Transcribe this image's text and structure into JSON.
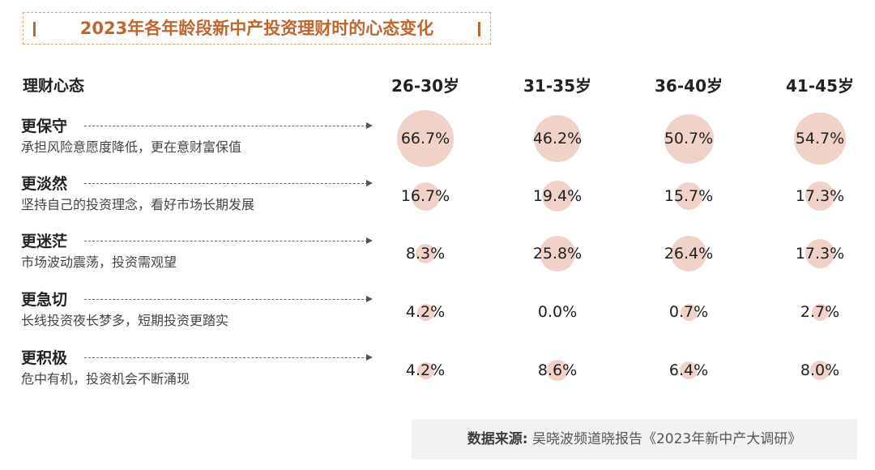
{
  "title": "2023年各年龄段新中产投资理财时的心态变化",
  "header": {
    "first": "理财心态",
    "columns": [
      "26-30岁",
      "31-35岁",
      "36-40岁",
      "41-45岁"
    ]
  },
  "rows": [
    {
      "name": "更保守",
      "desc": "承担风险意愿度降低，更在意财富保值",
      "values": [
        "66.7%",
        "46.2%",
        "50.7%",
        "54.7%"
      ]
    },
    {
      "name": "更淡然",
      "desc": "坚持自己的投资理念，看好市场长期发展",
      "values": [
        "16.7%",
        "19.4%",
        "15.7%",
        "17.3%"
      ]
    },
    {
      "name": "更迷茫",
      "desc": "市场波动震荡，投资需观望",
      "values": [
        "8.3%",
        "25.8%",
        "26.4%",
        "17.3%"
      ]
    },
    {
      "name": "更急切",
      "desc": "长线投资夜长梦多，短期投资更踏实",
      "values": [
        "4.2%",
        "0.0%",
        "0.7%",
        "2.7%"
      ]
    },
    {
      "name": "更积极",
      "desc": "危中有机，投资机会不断涌现",
      "values": [
        "4.2%",
        "8.6%",
        "6.4%",
        "8.0%"
      ]
    }
  ],
  "source": {
    "label": "数据来源:",
    "text": "吴晓波频道晓报告《2023年新中产大调研》"
  },
  "colors": {
    "title": "#c1652c",
    "bubble": "#ecc5b9"
  },
  "chart_data": {
    "type": "table",
    "categories": [
      "26-30岁",
      "31-35岁",
      "36-40岁",
      "41-45岁"
    ],
    "series": [
      {
        "name": "更保守",
        "values": [
          66.7,
          46.2,
          50.7,
          54.7
        ]
      },
      {
        "name": "更淡然",
        "values": [
          16.7,
          19.4,
          15.7,
          17.3
        ]
      },
      {
        "name": "更迷茫",
        "values": [
          8.3,
          25.8,
          26.4,
          17.3
        ]
      },
      {
        "name": "更急切",
        "values": [
          4.2,
          0.0,
          0.7,
          2.7
        ]
      },
      {
        "name": "更积极",
        "values": [
          4.2,
          8.6,
          6.4,
          8.0
        ]
      }
    ],
    "title": "2023年各年龄段新中产投资理财时的心态变化"
  }
}
